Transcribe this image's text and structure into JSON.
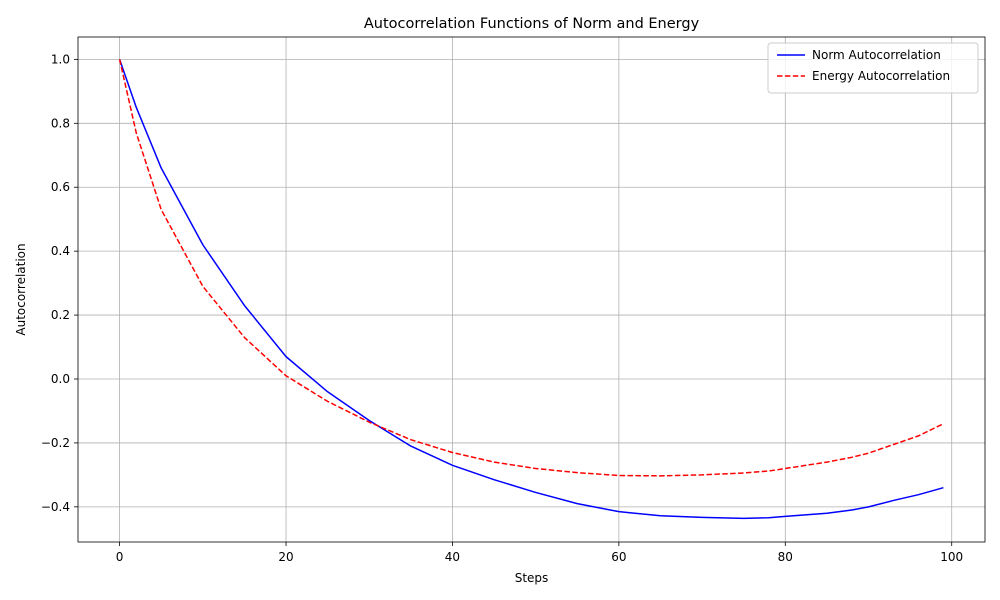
{
  "chart_data": {
    "type": "line",
    "title": "Autocorrelation Functions of Norm and Energy",
    "xlabel": "Steps",
    "ylabel": "Autocorrelation",
    "xlim": [
      -5,
      104
    ],
    "ylim": [
      -0.51,
      1.07
    ],
    "xticks": [
      0,
      20,
      40,
      60,
      80,
      100
    ],
    "yticks": [
      -0.4,
      -0.2,
      0.0,
      0.2,
      0.4,
      0.6,
      0.8,
      1.0
    ],
    "xtick_labels": [
      "0",
      "20",
      "40",
      "60",
      "80",
      "100"
    ],
    "ytick_labels": [
      "−0.4",
      "−0.2",
      "0.0",
      "0.2",
      "0.4",
      "0.6",
      "0.8",
      "1.0"
    ],
    "grid": true,
    "legend_position": "top-right",
    "series": [
      {
        "name": "Norm Autocorrelation",
        "color": "#0000ff",
        "style": "solid",
        "x": [
          0,
          2,
          5,
          10,
          15,
          20,
          25,
          30,
          35,
          40,
          45,
          50,
          55,
          60,
          65,
          70,
          75,
          78,
          80,
          85,
          88,
          90,
          93,
          96,
          99
        ],
        "y": [
          1.0,
          0.85,
          0.66,
          0.42,
          0.23,
          0.07,
          -0.04,
          -0.13,
          -0.21,
          -0.27,
          -0.315,
          -0.355,
          -0.39,
          -0.415,
          -0.428,
          -0.433,
          -0.436,
          -0.434,
          -0.43,
          -0.42,
          -0.41,
          -0.4,
          -0.38,
          -0.362,
          -0.34
        ]
      },
      {
        "name": "Energy Autocorrelation",
        "color": "#ff0000",
        "style": "dashed",
        "x": [
          0,
          2,
          5,
          10,
          15,
          20,
          25,
          30,
          35,
          40,
          45,
          50,
          55,
          60,
          65,
          70,
          75,
          78,
          80,
          85,
          88,
          90,
          93,
          96,
          99
        ],
        "y": [
          1.0,
          0.77,
          0.53,
          0.29,
          0.13,
          0.01,
          -0.07,
          -0.135,
          -0.19,
          -0.23,
          -0.26,
          -0.28,
          -0.293,
          -0.302,
          -0.303,
          -0.3,
          -0.294,
          -0.288,
          -0.28,
          -0.26,
          -0.245,
          -0.232,
          -0.205,
          -0.178,
          -0.14
        ]
      }
    ]
  }
}
